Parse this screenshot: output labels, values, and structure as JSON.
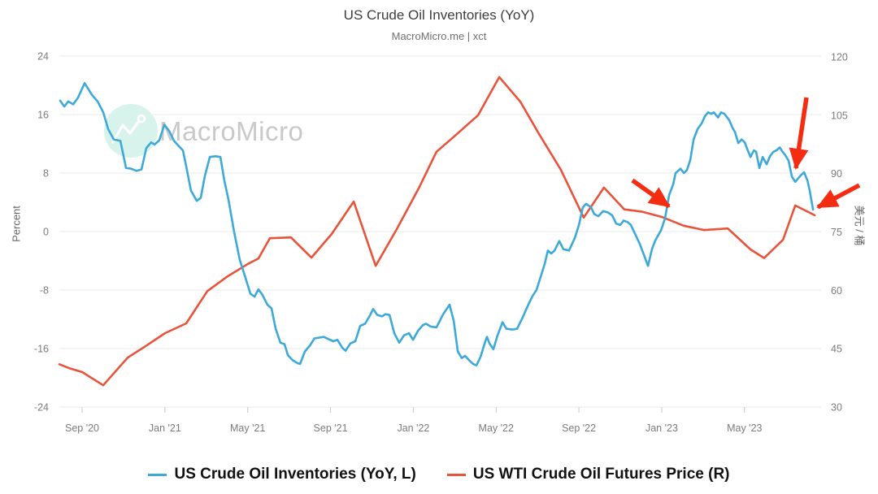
{
  "chart_data": {
    "type": "line",
    "title": "US Crude Oil Inventories (YoY)",
    "subtitle": "MacroMicro.me | xct",
    "watermark": {
      "text": "MacroMicro",
      "circle_color": "#d8f3eb",
      "text_color": "#c9c9c9"
    },
    "x_axis": {
      "ticks": [
        {
          "m": 1,
          "label": "Sep '20"
        },
        {
          "m": 5,
          "label": "Jan '21"
        },
        {
          "m": 9,
          "label": "May '21"
        },
        {
          "m": 13,
          "label": "Sep '21"
        },
        {
          "m": 17,
          "label": "Jan '22"
        },
        {
          "m": 21,
          "label": "May '22"
        },
        {
          "m": 25,
          "label": "Sep '22"
        },
        {
          "m": 29,
          "label": "Jan '23"
        },
        {
          "m": 33,
          "label": "May '23"
        }
      ]
    },
    "left_axis": {
      "title": "Percent",
      "ticks": [
        24,
        16,
        8,
        0,
        -8,
        -16,
        -24
      ],
      "range": [
        -24,
        24
      ]
    },
    "right_axis": {
      "title": "美元 / 桶",
      "ticks": [
        120,
        105,
        90,
        75,
        60,
        45,
        30
      ],
      "range": [
        30,
        120
      ]
    },
    "grid_color": "#e9e9e9",
    "series": [
      {
        "name": "US Crude Oil Inventories (YoY, L)",
        "axis": "left",
        "color": "#3da9d9",
        "points": [
          [
            -0.06,
            17.9
          ],
          [
            0.14,
            17.1
          ],
          [
            0.33,
            17.8
          ],
          [
            0.57,
            17.4
          ],
          [
            0.8,
            18.3
          ],
          [
            1.12,
            20.3
          ],
          [
            1.47,
            18.7
          ],
          [
            1.75,
            17.8
          ],
          [
            2.02,
            16.3
          ],
          [
            2.26,
            14.0
          ],
          [
            2.53,
            12.6
          ],
          [
            2.85,
            12.4
          ],
          [
            3.12,
            8.7
          ],
          [
            3.36,
            8.6
          ],
          [
            3.63,
            8.3
          ],
          [
            3.87,
            8.5
          ],
          [
            4.1,
            11.4
          ],
          [
            4.34,
            12.2
          ],
          [
            4.5,
            11.9
          ],
          [
            4.73,
            12.5
          ],
          [
            4.97,
            14.6
          ],
          [
            5.2,
            13.8
          ],
          [
            5.44,
            12.4
          ],
          [
            5.67,
            11.7
          ],
          [
            5.87,
            11.1
          ],
          [
            6.03,
            8.9
          ],
          [
            6.26,
            5.6
          ],
          [
            6.54,
            4.2
          ],
          [
            6.73,
            4.6
          ],
          [
            6.93,
            7.6
          ],
          [
            7.17,
            10.2
          ],
          [
            7.44,
            10.3
          ],
          [
            7.68,
            10.2
          ],
          [
            7.87,
            7.0
          ],
          [
            8.07,
            4.4
          ],
          [
            8.34,
            0.0
          ],
          [
            8.62,
            -3.9
          ],
          [
            8.89,
            -6.3
          ],
          [
            9.13,
            -8.5
          ],
          [
            9.33,
            -8.9
          ],
          [
            9.52,
            -7.9
          ],
          [
            9.72,
            -8.7
          ],
          [
            9.95,
            -10.0
          ],
          [
            10.15,
            -10.5
          ],
          [
            10.35,
            -13.3
          ],
          [
            10.58,
            -15.2
          ],
          [
            10.78,
            -15.4
          ],
          [
            10.94,
            -16.9
          ],
          [
            11.17,
            -17.6
          ],
          [
            11.41,
            -18.0
          ],
          [
            11.53,
            -18.1
          ],
          [
            11.76,
            -16.4
          ],
          [
            12.0,
            -15.6
          ],
          [
            12.23,
            -14.6
          ],
          [
            12.47,
            -14.5
          ],
          [
            12.67,
            -14.4
          ],
          [
            12.9,
            -14.7
          ],
          [
            13.14,
            -15.0
          ],
          [
            13.33,
            -14.8
          ],
          [
            13.57,
            -15.9
          ],
          [
            13.73,
            -16.3
          ],
          [
            13.96,
            -15.3
          ],
          [
            14.2,
            -15.0
          ],
          [
            14.43,
            -12.9
          ],
          [
            14.67,
            -12.6
          ],
          [
            14.9,
            -11.5
          ],
          [
            15.06,
            -10.6
          ],
          [
            15.26,
            -11.4
          ],
          [
            15.49,
            -11.6
          ],
          [
            15.65,
            -11.3
          ],
          [
            15.85,
            -11.4
          ],
          [
            16.08,
            -13.9
          ],
          [
            16.32,
            -15.2
          ],
          [
            16.55,
            -14.2
          ],
          [
            16.79,
            -13.9
          ],
          [
            16.99,
            -14.8
          ],
          [
            17.22,
            -13.6
          ],
          [
            17.46,
            -12.8
          ],
          [
            17.61,
            -12.6
          ],
          [
            17.85,
            -13.0
          ],
          [
            18.12,
            -13.1
          ],
          [
            18.44,
            -11.3
          ],
          [
            18.75,
            -10.0
          ],
          [
            18.95,
            -12.2
          ],
          [
            19.15,
            -16.4
          ],
          [
            19.34,
            -17.3
          ],
          [
            19.5,
            -17.0
          ],
          [
            19.7,
            -17.6
          ],
          [
            19.89,
            -18.1
          ],
          [
            20.05,
            -18.3
          ],
          [
            20.25,
            -17.1
          ],
          [
            20.48,
            -15.0
          ],
          [
            20.56,
            -14.4
          ],
          [
            20.68,
            -15.3
          ],
          [
            20.87,
            -16.1
          ],
          [
            21.07,
            -14.2
          ],
          [
            21.31,
            -12.4
          ],
          [
            21.5,
            -13.3
          ],
          [
            21.78,
            -13.4
          ],
          [
            22.01,
            -13.3
          ],
          [
            22.29,
            -11.7
          ],
          [
            22.52,
            -10.2
          ],
          [
            22.76,
            -8.8
          ],
          [
            22.95,
            -8.0
          ],
          [
            23.15,
            -6.2
          ],
          [
            23.35,
            -4.4
          ],
          [
            23.5,
            -2.6
          ],
          [
            23.66,
            -3.0
          ],
          [
            23.82,
            -2.6
          ],
          [
            24.05,
            -1.3
          ],
          [
            24.25,
            -2.4
          ],
          [
            24.52,
            -2.6
          ],
          [
            24.8,
            -0.9
          ],
          [
            25.0,
            0.9
          ],
          [
            25.19,
            3.3
          ],
          [
            25.35,
            3.8
          ],
          [
            25.59,
            3.3
          ],
          [
            25.74,
            2.4
          ],
          [
            25.94,
            2.1
          ],
          [
            26.17,
            2.8
          ],
          [
            26.41,
            2.6
          ],
          [
            26.61,
            2.2
          ],
          [
            26.8,
            1.1
          ],
          [
            27.0,
            0.9
          ],
          [
            27.16,
            1.5
          ],
          [
            27.35,
            1.3
          ],
          [
            27.51,
            0.9
          ],
          [
            27.71,
            -0.3
          ],
          [
            27.94,
            -1.7
          ],
          [
            28.14,
            -3.2
          ],
          [
            28.34,
            -4.7
          ],
          [
            28.53,
            -2.4
          ],
          [
            28.69,
            -1.2
          ],
          [
            28.97,
            0.2
          ],
          [
            29.16,
            1.8
          ],
          [
            29.36,
            5.0
          ],
          [
            29.56,
            6.5
          ],
          [
            29.67,
            8.0
          ],
          [
            29.91,
            8.6
          ],
          [
            30.07,
            8.0
          ],
          [
            30.22,
            8.4
          ],
          [
            30.38,
            9.8
          ],
          [
            30.54,
            12.6
          ],
          [
            30.73,
            14.0
          ],
          [
            30.93,
            14.8
          ],
          [
            31.09,
            15.8
          ],
          [
            31.24,
            16.3
          ],
          [
            31.4,
            16.1
          ],
          [
            31.52,
            16.3
          ],
          [
            31.72,
            15.6
          ],
          [
            31.87,
            16.3
          ],
          [
            32.03,
            16.1
          ],
          [
            32.27,
            15.2
          ],
          [
            32.42,
            14.2
          ],
          [
            32.54,
            13.6
          ],
          [
            32.7,
            12.1
          ],
          [
            32.86,
            12.6
          ],
          [
            33.01,
            12.2
          ],
          [
            33.13,
            11.3
          ],
          [
            33.29,
            10.2
          ],
          [
            33.45,
            11.1
          ],
          [
            33.56,
            10.9
          ],
          [
            33.72,
            8.7
          ],
          [
            33.88,
            10.2
          ],
          [
            34.07,
            9.2
          ],
          [
            34.23,
            10.3
          ],
          [
            34.39,
            10.9
          ],
          [
            34.54,
            11.1
          ],
          [
            34.7,
            11.5
          ],
          [
            34.82,
            11.0
          ],
          [
            34.98,
            10.4
          ],
          [
            35.13,
            9.7
          ],
          [
            35.29,
            7.5
          ],
          [
            35.45,
            6.8
          ],
          [
            35.57,
            7.2
          ],
          [
            35.72,
            7.7
          ],
          [
            35.88,
            8.1
          ],
          [
            36.04,
            7.0
          ],
          [
            36.15,
            5.6
          ],
          [
            36.31,
            3.0
          ]
        ]
      },
      {
        "name": "US WTI Crude Oil Futures Price (R)",
        "axis": "right",
        "color": "#e8533b",
        "points": [
          [
            -0.1,
            41.0
          ],
          [
            0.37,
            40.0
          ],
          [
            1.0,
            39.0
          ],
          [
            2.02,
            35.6
          ],
          [
            3.2,
            42.7
          ],
          [
            4.02,
            45.5
          ],
          [
            5.01,
            49.0
          ],
          [
            6.03,
            51.5
          ],
          [
            7.05,
            59.8
          ],
          [
            8.03,
            63.6
          ],
          [
            9.01,
            66.8
          ],
          [
            9.52,
            68.2
          ],
          [
            10.07,
            73.4
          ],
          [
            11.09,
            73.6
          ],
          [
            12.08,
            68.4
          ],
          [
            13.06,
            74.5
          ],
          [
            14.12,
            82.8
          ],
          [
            15.18,
            66.3
          ],
          [
            16.2,
            75.7
          ],
          [
            17.26,
            86.2
          ],
          [
            18.12,
            95.6
          ],
          [
            19.03,
            99.8
          ],
          [
            20.13,
            105.0
          ],
          [
            21.15,
            114.8
          ],
          [
            22.17,
            108.5
          ],
          [
            23.07,
            100.2
          ],
          [
            24.13,
            91.0
          ],
          [
            25.23,
            78.7
          ],
          [
            26.21,
            86.4
          ],
          [
            27.19,
            80.8
          ],
          [
            28.06,
            80.2
          ],
          [
            29.04,
            78.8
          ],
          [
            30.06,
            76.6
          ],
          [
            31.05,
            75.5
          ],
          [
            32.19,
            75.9
          ],
          [
            33.29,
            70.5
          ],
          [
            33.95,
            68.3
          ],
          [
            34.86,
            73.0
          ],
          [
            35.45,
            81.8
          ],
          [
            36.39,
            79.3
          ]
        ]
      }
    ],
    "annotations": {
      "color": "#f42d12",
      "arrows": [
        {
          "from": [
            778,
            222
          ],
          "to": [
            823,
            254
          ]
        },
        {
          "from": [
            992,
            120
          ],
          "to": [
            979,
            207
          ]
        },
        {
          "from": [
            1057,
            228
          ],
          "to": [
            1006,
            255
          ]
        }
      ]
    },
    "legend_position": "bottom"
  }
}
